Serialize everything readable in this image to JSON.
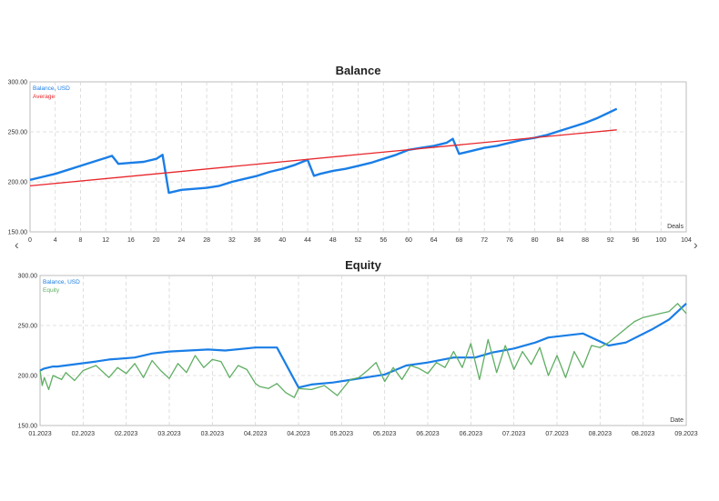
{
  "colors": {
    "balance": "#1a7ee6",
    "average": "#e8262b",
    "equity": "#5fae63",
    "grid": "#d6d6d6",
    "frame": "#bdbdbd"
  },
  "nav": {
    "prev_icon": "chevron-left-icon",
    "next_icon": "chevron-right-icon",
    "prev": "‹",
    "next": "›"
  },
  "chart_data": [
    {
      "type": "line",
      "title": "Balance",
      "xlabel": "Deals",
      "ylabel": "",
      "xlim": [
        0,
        104
      ],
      "ylim": [
        150,
        300
      ],
      "x_tick_labels": [
        "0",
        "4",
        "8",
        "12",
        "16",
        "20",
        "24",
        "28",
        "32",
        "36",
        "40",
        "44",
        "48",
        "52",
        "56",
        "60",
        "64",
        "68",
        "72",
        "76",
        "80",
        "84",
        "88",
        "92",
        "96",
        "100",
        "104"
      ],
      "y_tick_labels": [
        "150.00",
        "200.00",
        "250.00",
        "300.00"
      ],
      "legend": [
        "Balance, USD",
        "Average"
      ],
      "legend_position": "top-left",
      "grid": true,
      "series": [
        {
          "name": "Balance, USD",
          "x": [
            0,
            2,
            4,
            6,
            8,
            10,
            12,
            13,
            14,
            16,
            18,
            20,
            21,
            22,
            24,
            26,
            28,
            30,
            32,
            34,
            36,
            38,
            40,
            42,
            44,
            45,
            46,
            48,
            50,
            52,
            54,
            56,
            58,
            60,
            62,
            64,
            66,
            67,
            68,
            70,
            72,
            74,
            76,
            78,
            80,
            82,
            84,
            86,
            88,
            90,
            92,
            93
          ],
          "y": [
            202,
            205,
            208,
            212,
            216,
            220,
            224,
            226,
            218,
            219,
            220,
            223,
            227,
            189,
            192,
            193,
            194,
            196,
            200,
            203,
            206,
            210,
            213,
            217,
            222,
            206,
            208,
            211,
            213,
            216,
            219,
            223,
            227,
            232,
            234,
            236,
            239,
            243,
            228,
            231,
            234,
            236,
            239,
            242,
            244,
            247,
            251,
            255,
            259,
            264,
            270,
            273
          ]
        },
        {
          "name": "Average",
          "x": [
            0,
            93
          ],
          "y": [
            196,
            252
          ]
        }
      ]
    },
    {
      "type": "line",
      "title": "Equity",
      "xlabel": "Date",
      "ylabel": "",
      "ylim": [
        150,
        300
      ],
      "x_tick_labels": [
        "01.2023",
        "02.2023",
        "02.2023",
        "03.2023",
        "03.2023",
        "04.2023",
        "04.2023",
        "05.2023",
        "05.2023",
        "06.2023",
        "06.2023",
        "07.2023",
        "07.2023",
        "08.2023",
        "08.2023",
        "09.2023"
      ],
      "y_tick_labels": [
        "150.00",
        "200.00",
        "250.00",
        "300.00"
      ],
      "legend": [
        "Balance, USD",
        "Equity"
      ],
      "legend_position": "top-left",
      "grid": true,
      "series": [
        {
          "name": "Balance, USD",
          "x": [
            0,
            0.1,
            0.3,
            0.4,
            1.3,
            1.6,
            2.2,
            2.6,
            3.0,
            3.9,
            4.3,
            5.0,
            5.5,
            6.0,
            6.3,
            6.8,
            7.4,
            8.0,
            8.5,
            9.0,
            9.6,
            10.1,
            10.5,
            11.0,
            11.5,
            11.8,
            12.6,
            13.2,
            13.6,
            14.2,
            14.6,
            15.0
          ],
          "y": [
            205,
            207,
            209,
            209,
            214,
            216,
            218,
            222,
            224,
            226,
            225,
            228,
            228,
            188,
            191,
            193,
            197,
            201,
            210,
            213,
            218,
            218,
            223,
            227,
            233,
            238,
            242,
            230,
            233,
            246,
            256,
            272
          ]
        },
        {
          "name": "Equity",
          "x": [
            0,
            0.05,
            0.1,
            0.2,
            0.3,
            0.5,
            0.6,
            0.8,
            1.0,
            1.3,
            1.6,
            1.8,
            2.0,
            2.2,
            2.4,
            2.6,
            2.8,
            3.0,
            3.2,
            3.4,
            3.6,
            3.8,
            4.0,
            4.2,
            4.4,
            4.6,
            4.8,
            5.0,
            5.1,
            5.3,
            5.5,
            5.7,
            5.9,
            6.0,
            6.3,
            6.6,
            6.9,
            7.2,
            7.4,
            7.6,
            7.8,
            8.0,
            8.2,
            8.4,
            8.6,
            8.8,
            9.0,
            9.2,
            9.4,
            9.6,
            9.8,
            10.0,
            10.2,
            10.4,
            10.6,
            10.8,
            11.0,
            11.2,
            11.4,
            11.6,
            11.8,
            12.0,
            12.2,
            12.4,
            12.6,
            12.8,
            13.0,
            13.2,
            13.4,
            13.6,
            13.8,
            14.0,
            14.2,
            14.4,
            14.6,
            14.8,
            15.0
          ],
          "y": [
            205,
            190,
            198,
            186,
            200,
            196,
            203,
            195,
            205,
            210,
            198,
            208,
            202,
            212,
            198,
            215,
            205,
            197,
            212,
            203,
            220,
            208,
            216,
            214,
            198,
            210,
            206,
            192,
            189,
            187,
            192,
            183,
            178,
            187,
            186,
            190,
            180,
            196,
            198,
            205,
            213,
            194,
            208,
            196,
            210,
            207,
            202,
            213,
            208,
            224,
            208,
            232,
            196,
            236,
            203,
            230,
            206,
            224,
            211,
            228,
            200,
            220,
            198,
            224,
            208,
            230,
            228,
            233,
            240,
            247,
            254,
            258,
            260,
            262,
            264,
            272,
            262
          ]
        }
      ]
    }
  ]
}
